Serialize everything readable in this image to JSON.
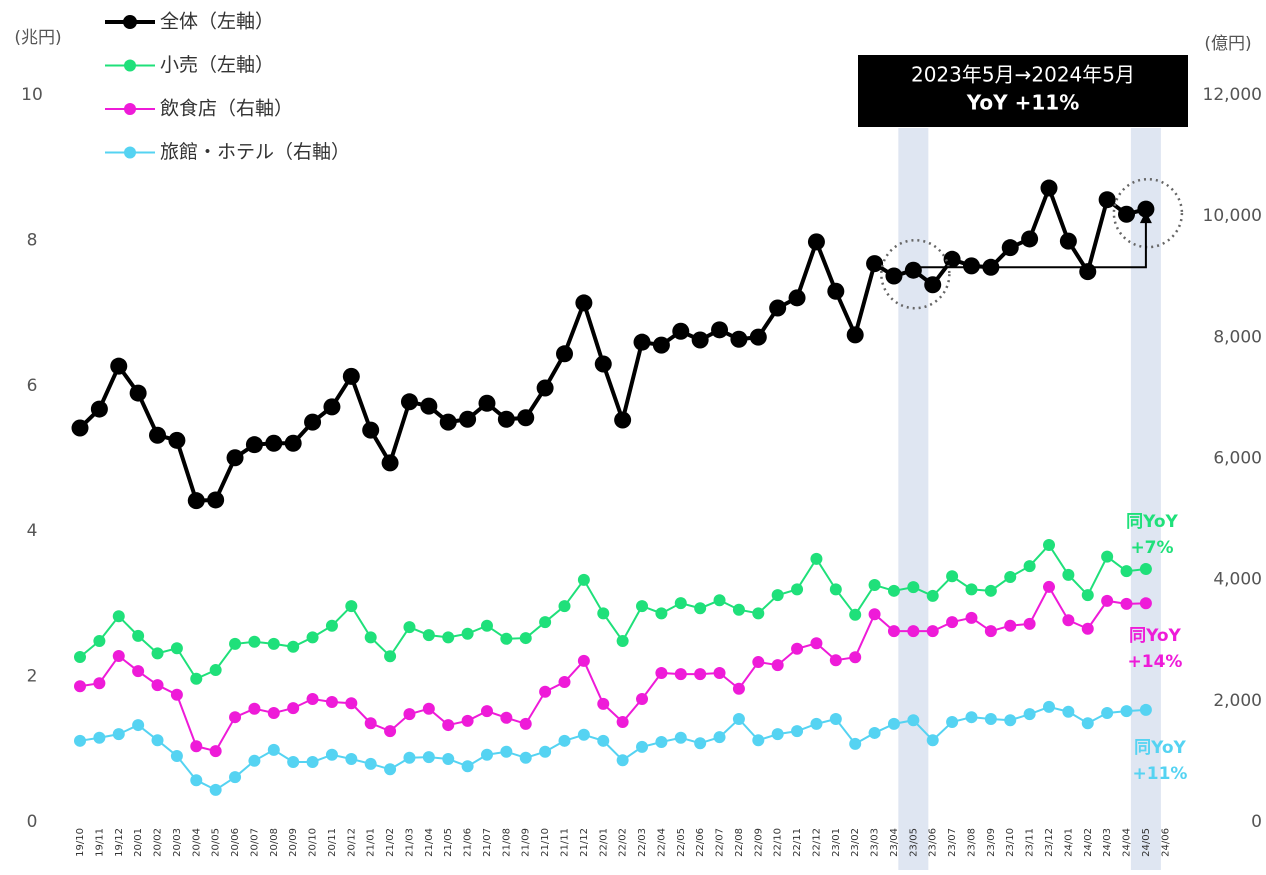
{
  "chart_data": {
    "type": "line",
    "y_unit": "(兆円)",
    "y2_unit": "(億円)",
    "categories": [
      "19/10",
      "19/11",
      "19/12",
      "20/01",
      "20/02",
      "20/03",
      "20/04",
      "20/05",
      "20/06",
      "20/07",
      "20/08",
      "20/09",
      "20/10",
      "20/11",
      "20/12",
      "21/01",
      "21/02",
      "21/03",
      "21/04",
      "21/05",
      "21/06",
      "21/07",
      "21/08",
      "21/09",
      "21/10",
      "21/11",
      "21/12",
      "22/01",
      "22/02",
      "22/03",
      "22/04",
      "22/05",
      "22/06",
      "22/07",
      "22/08",
      "22/09",
      "22/10",
      "22/11",
      "22/12",
      "23/01",
      "23/02",
      "23/03",
      "23/04",
      "23/05",
      "23/06",
      "23/07",
      "23/08",
      "23/09",
      "23/10",
      "23/11",
      "23/12",
      "24/01",
      "24/02",
      "24/03",
      "24/04",
      "24/05",
      "24/06"
    ],
    "series": [
      {
        "name": "全体（左軸）",
        "color": "#000000",
        "axis": "y",
        "values": [
          5.42,
          5.68,
          6.27,
          5.9,
          5.32,
          5.25,
          4.42,
          4.43,
          5.01,
          5.19,
          5.21,
          5.21,
          5.5,
          5.71,
          6.13,
          5.39,
          4.94,
          5.78,
          5.72,
          5.5,
          5.54,
          5.76,
          5.54,
          5.56,
          5.97,
          6.44,
          7.14,
          6.3,
          5.53,
          6.6,
          6.56,
          6.75,
          6.63,
          6.77,
          6.64,
          6.67,
          7.07,
          7.21,
          7.98,
          7.3,
          6.7,
          7.68,
          7.51,
          7.59,
          7.39,
          7.74,
          7.65,
          7.63,
          7.9,
          8.02,
          8.72,
          7.99,
          7.57,
          8.56,
          8.36,
          8.43,
          null
        ]
      },
      {
        "name": "小売（左軸）",
        "color": "#1fe07a",
        "axis": "y",
        "values": [
          2.27,
          2.49,
          2.83,
          2.56,
          2.32,
          2.39,
          1.97,
          2.09,
          2.45,
          2.48,
          2.45,
          2.41,
          2.54,
          2.7,
          2.97,
          2.54,
          2.28,
          2.68,
          2.57,
          2.54,
          2.59,
          2.7,
          2.52,
          2.53,
          2.75,
          2.97,
          3.33,
          2.87,
          2.49,
          2.97,
          2.87,
          3.01,
          2.94,
          3.05,
          2.92,
          2.87,
          3.12,
          3.2,
          3.62,
          3.2,
          2.85,
          3.26,
          3.18,
          3.23,
          3.11,
          3.38,
          3.2,
          3.18,
          3.37,
          3.52,
          3.81,
          3.4,
          3.12,
          3.65,
          3.45,
          3.48,
          null
        ]
      },
      {
        "name": "飲食店（右軸）",
        "color": "#ee1bd8",
        "axis": "y2",
        "values": [
          2240,
          2290,
          2740,
          2490,
          2260,
          2100,
          1250,
          1170,
          1730,
          1870,
          1800,
          1880,
          2030,
          1980,
          1960,
          1630,
          1500,
          1780,
          1870,
          1600,
          1670,
          1830,
          1720,
          1620,
          2150,
          2310,
          2660,
          1950,
          1650,
          2030,
          2460,
          2440,
          2440,
          2460,
          2200,
          2640,
          2590,
          2860,
          2950,
          2670,
          2720,
          3430,
          3150,
          3150,
          3150,
          3300,
          3370,
          3150,
          3240,
          3270,
          3880,
          3330,
          3190,
          3650,
          3600,
          3610,
          null
        ]
      },
      {
        "name": "旅館・ホテル（右軸）",
        "color": "#55d3f2",
        "axis": "y2",
        "values": [
          1340,
          1390,
          1450,
          1600,
          1350,
          1090,
          690,
          530,
          740,
          1010,
          1190,
          990,
          990,
          1110,
          1040,
          960,
          870,
          1060,
          1070,
          1040,
          920,
          1110,
          1160,
          1060,
          1160,
          1340,
          1440,
          1340,
          1020,
          1240,
          1320,
          1390,
          1300,
          1400,
          1700,
          1350,
          1450,
          1500,
          1620,
          1700,
          1290,
          1470,
          1620,
          1680,
          1350,
          1650,
          1730,
          1700,
          1680,
          1780,
          1900,
          1820,
          1630,
          1800,
          1830,
          1850,
          null
        ]
      }
    ],
    "ylim": [
      0,
      10
    ],
    "yticks": [
      0,
      2,
      4,
      6,
      8,
      10
    ],
    "y2lim": [
      0,
      12000
    ],
    "y2ticks": [
      0,
      {
        "value": 2000,
        "label": "2,000"
      },
      {
        "value": 4000,
        "label": "4,000"
      },
      {
        "value": 6000,
        "label": "6,000"
      },
      {
        "value": 8000,
        "label": "8,000"
      },
      {
        "value": 10000,
        "label": "10,000"
      },
      {
        "value": 12000,
        "label": "12,000"
      }
    ],
    "highlight": [
      "23/05",
      "24/05"
    ],
    "callout": [
      "2023年5月→2024年5月",
      "YoY +11%"
    ],
    "annotations": [
      {
        "lines": [
          "同YoY",
          "+7%"
        ],
        "color": "#1fe07a"
      },
      {
        "lines": [
          "同YoY",
          "+14%"
        ],
        "color": "#ee1bd8"
      },
      {
        "lines": [
          "同YoY",
          "+11%"
        ],
        "color": "#55d3f2"
      }
    ]
  }
}
